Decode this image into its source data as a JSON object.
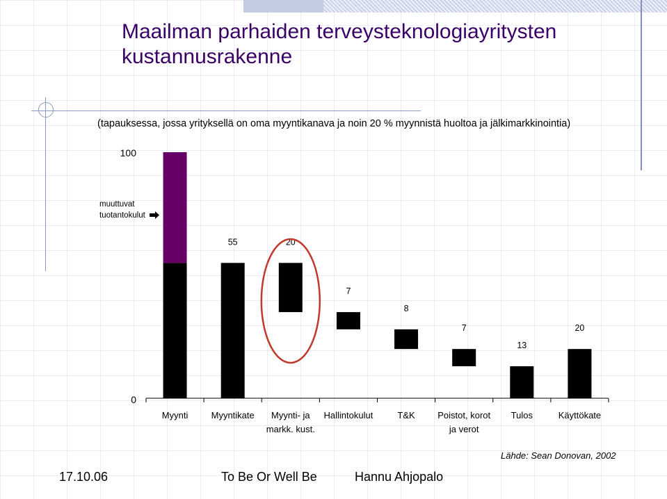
{
  "title": "Maailman parhaiden terveysteknologiayritysten kustannusrakenne",
  "subtitle": "(tapauksessa, jossa yrityksellä on oma myyntikanava ja noin 20 % myynnistä huoltoa ja jälkimarkkinointia)",
  "chart_data": {
    "type": "bar",
    "subtype": "waterfall",
    "categories": [
      "Myynti",
      "Myyntikate",
      "Myynti- ja markk. kust.",
      "Hallintokulut",
      "T&K",
      "Poistot, korot ja verot",
      "Tulos",
      "Käyttökate"
    ],
    "values": [
      100,
      55,
      20,
      7,
      8,
      7,
      13,
      20
    ],
    "bar_ranges": [
      [
        0,
        100
      ],
      [
        0,
        55
      ],
      [
        35,
        55
      ],
      [
        28,
        35
      ],
      [
        20,
        28
      ],
      [
        13,
        20
      ],
      [
        0,
        13
      ],
      [
        0,
        20
      ]
    ],
    "variable_costs": {
      "range": [
        55,
        100
      ],
      "label": "muuttuvat tuotantokulut"
    },
    "value_labels": [
      "",
      "55",
      "20",
      "7",
      "8",
      "7",
      "13",
      "20"
    ],
    "y_tick_labels": [
      "100",
      "0"
    ],
    "ylim": [
      0,
      100
    ],
    "highlighted_category": "Myynti- ja markk. kust.",
    "colors": {
      "bars": "#000000",
      "variable_costs": "#660066",
      "highlight_ring": "#c0392b",
      "title": "#3a0067"
    }
  },
  "footer": {
    "date": "17.10.06",
    "center": "To Be Or Well Be",
    "author": "Hannu Ahjopalo",
    "source": "Lähde: Sean Donovan, 2002"
  }
}
